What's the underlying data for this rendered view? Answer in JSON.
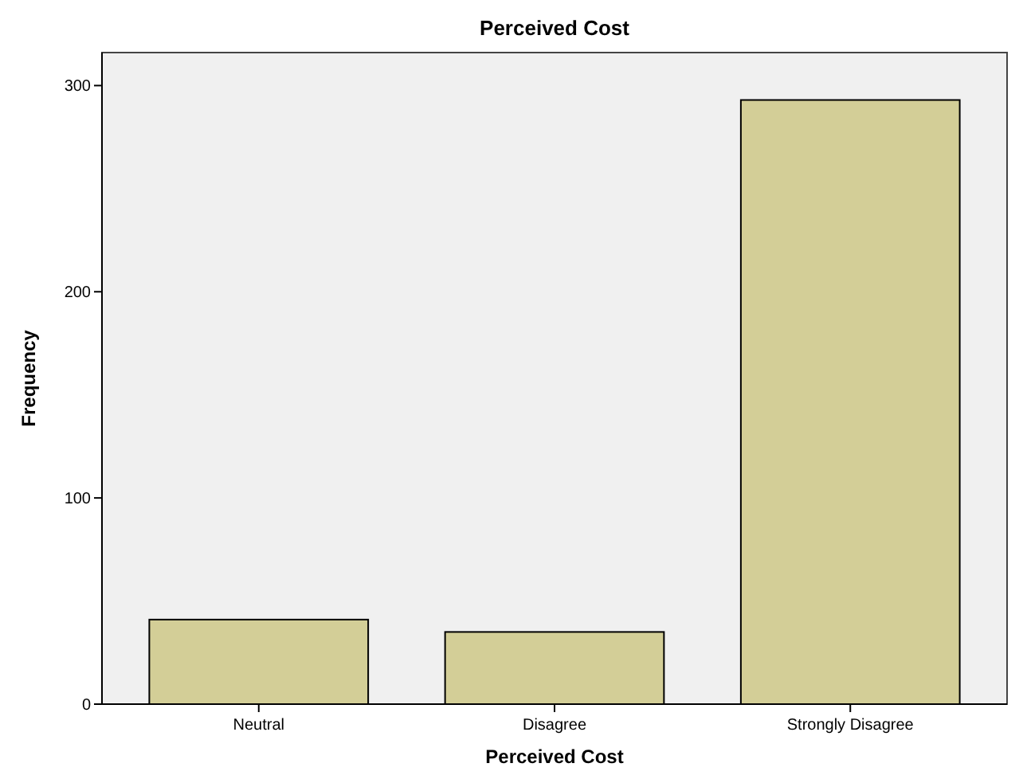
{
  "chart_data": {
    "type": "bar",
    "title": "Perceived Cost",
    "xlabel": "Perceived Cost",
    "ylabel": "Frequency",
    "categories": [
      "Neutral",
      "Disagree",
      "Strongly Disagree"
    ],
    "values": [
      41,
      35,
      293
    ],
    "color": "#d3ce97",
    "ylim": [
      0,
      316
    ],
    "yticks": [
      0,
      100,
      200,
      300
    ],
    "grid": false
  }
}
